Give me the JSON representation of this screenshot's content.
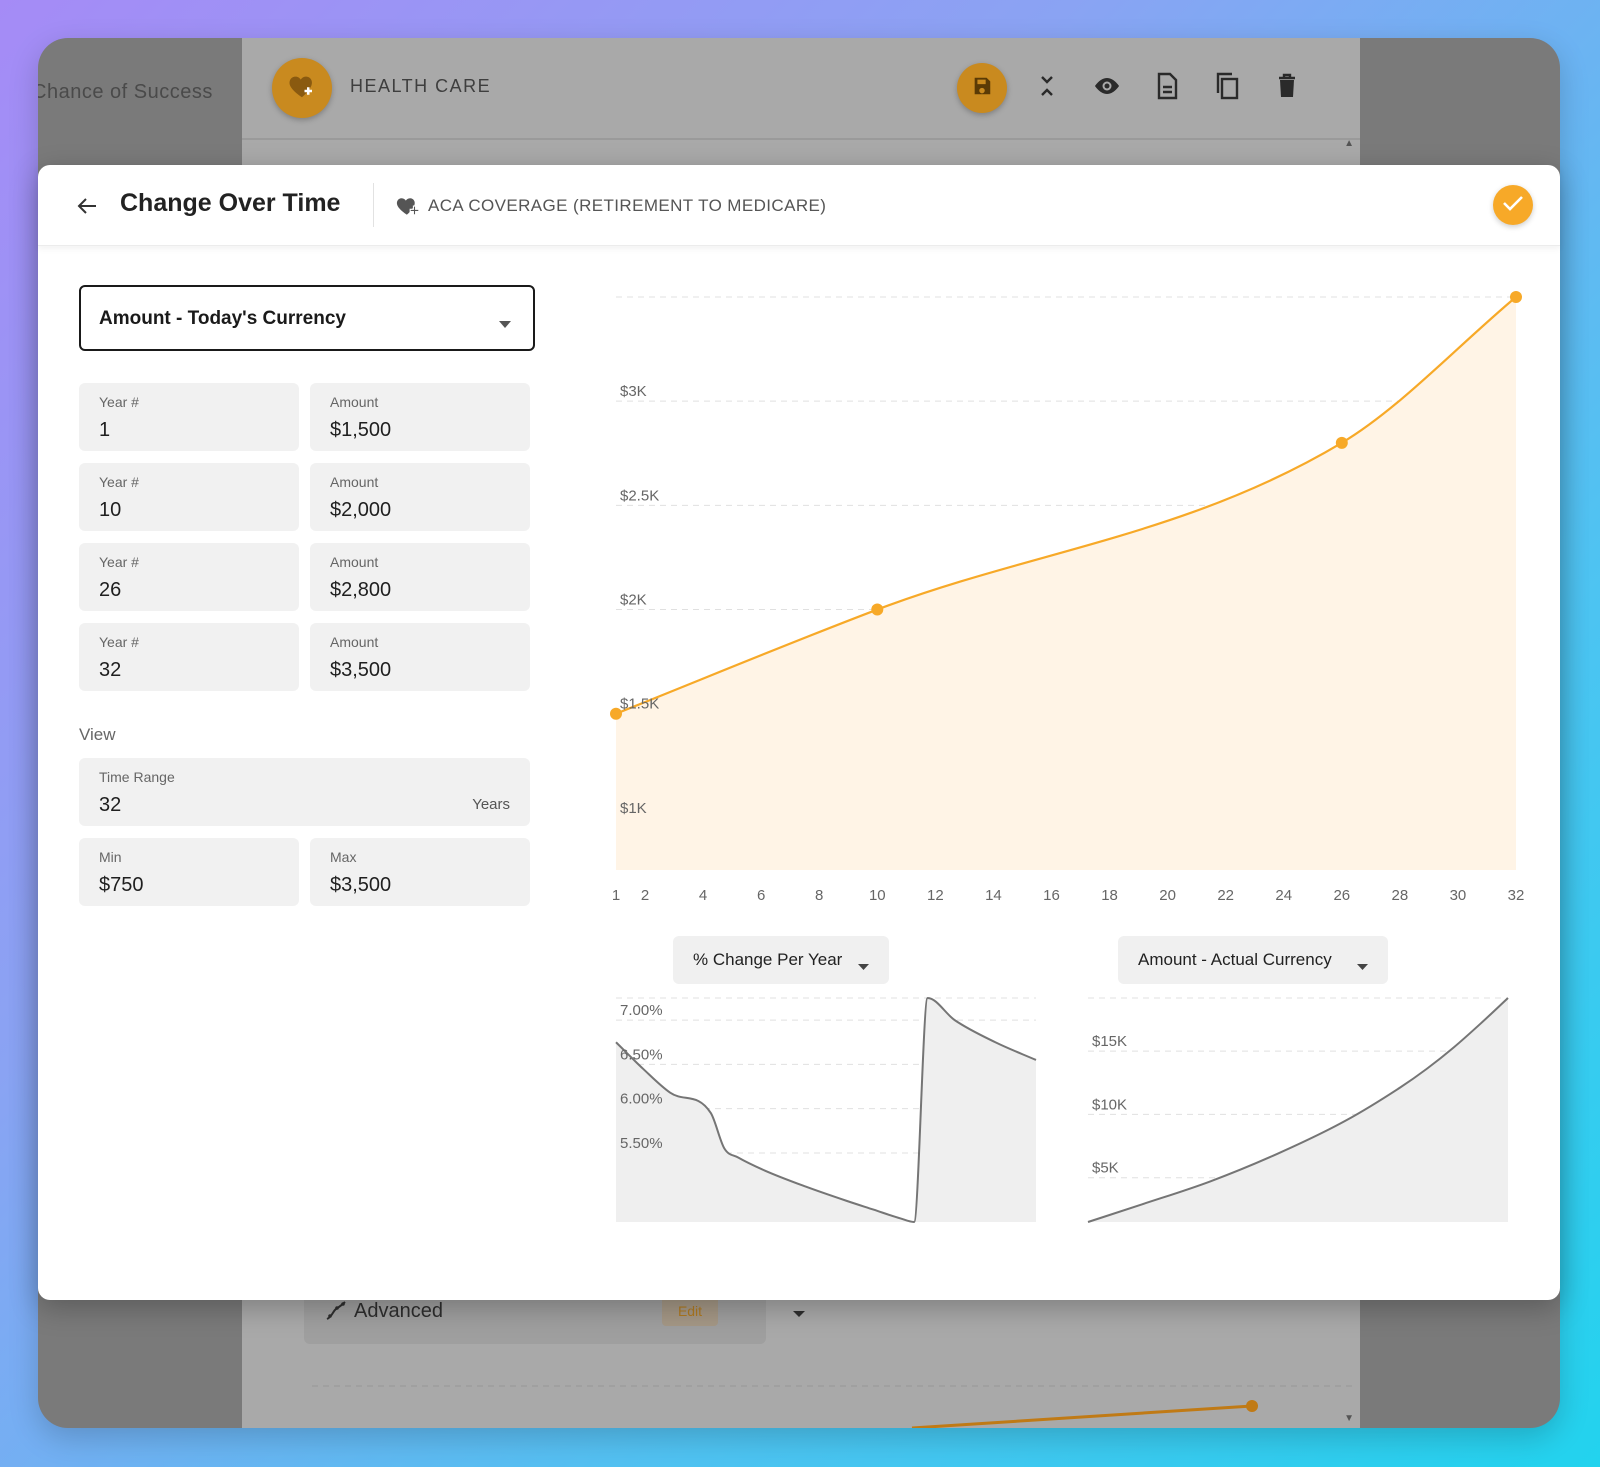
{
  "background": {
    "side_tab_label": "Chance of Success",
    "card": {
      "title": "HEALTH CARE",
      "tool_icons": [
        "save-icon",
        "collapse-icon",
        "eye-icon",
        "document-icon",
        "copy-icon",
        "trash-icon"
      ],
      "advanced_label": "Advanced",
      "advanced_edit_label": "Edit"
    }
  },
  "modal": {
    "title": "Change Over Time",
    "subtitle": "ACA COVERAGE (RETIREMENT TO MEDICARE)",
    "mode_select": "Amount - Today's Currency",
    "points": [
      {
        "year_label": "Year #",
        "year": "1",
        "amount_label": "Amount",
        "amount": "$1,500"
      },
      {
        "year_label": "Year #",
        "year": "10",
        "amount_label": "Amount",
        "amount": "$2,000"
      },
      {
        "year_label": "Year #",
        "year": "26",
        "amount_label": "Amount",
        "amount": "$2,800"
      },
      {
        "year_label": "Year #",
        "year": "32",
        "amount_label": "Amount",
        "amount": "$3,500"
      }
    ],
    "view": {
      "heading": "View",
      "time_range_label": "Time Range",
      "time_range_value": "32",
      "time_range_suffix": "Years",
      "min_label": "Min",
      "min_value": "$750",
      "max_label": "Max",
      "max_value": "$3,500"
    },
    "pct_select": "% Change Per Year",
    "actual_select": "Amount - Actual Currency"
  },
  "colors": {
    "accent": "#f7a928",
    "accent_fill": "#fff4e6",
    "mini_line": "#757575",
    "mini_fill": "#efefef"
  },
  "chart_data": [
    {
      "type": "area",
      "x": [
        1,
        10,
        26,
        32
      ],
      "values": [
        1500,
        2000,
        2800,
        3500
      ],
      "xticks": [
        1,
        2,
        4,
        6,
        8,
        10,
        12,
        14,
        16,
        18,
        20,
        22,
        24,
        26,
        28,
        30,
        32
      ],
      "yticks": [
        {
          "value": 1000,
          "label": "$1K"
        },
        {
          "value": 1500,
          "label": "$1.5K"
        },
        {
          "value": 2000,
          "label": "$2K"
        },
        {
          "value": 2500,
          "label": "$2.5K"
        },
        {
          "value": 3000,
          "label": "$3K"
        }
      ],
      "xlim": [
        1,
        32
      ],
      "ylim": [
        750,
        3500
      ],
      "grid": true,
      "color": "#f7a928"
    },
    {
      "type": "area",
      "x": [
        1,
        3,
        5,
        8,
        9,
        10,
        12,
        15,
        18,
        20,
        22,
        23,
        24,
        26,
        29,
        32
      ],
      "values": [
        6.75,
        6.45,
        6.18,
        5.95,
        5.55,
        5.45,
        5.3,
        5.12,
        4.96,
        4.86,
        4.76,
        4.72,
        7.25,
        7.0,
        6.75,
        6.55
      ],
      "yticks": [
        {
          "value": 5.5,
          "label": "5.50%"
        },
        {
          "value": 6.0,
          "label": "6.00%"
        },
        {
          "value": 6.5,
          "label": "6.50%"
        },
        {
          "value": 7.0,
          "label": "7.00%"
        }
      ],
      "xlim": [
        1,
        32
      ],
      "ylim": [
        4.72,
        7.25
      ],
      "grid": true
    },
    {
      "type": "area",
      "x": [
        1,
        5,
        10,
        15,
        20,
        24,
        26,
        28,
        30,
        32
      ],
      "values": [
        1500,
        2900,
        4700,
        6900,
        9500,
        12100,
        13600,
        15300,
        17200,
        19200
      ],
      "yticks": [
        {
          "value": 5000,
          "label": "$5K"
        },
        {
          "value": 10000,
          "label": "$10K"
        },
        {
          "value": 15000,
          "label": "$15K"
        }
      ],
      "xlim": [
        1,
        32
      ],
      "ylim": [
        1500,
        19200
      ],
      "grid": true
    }
  ]
}
